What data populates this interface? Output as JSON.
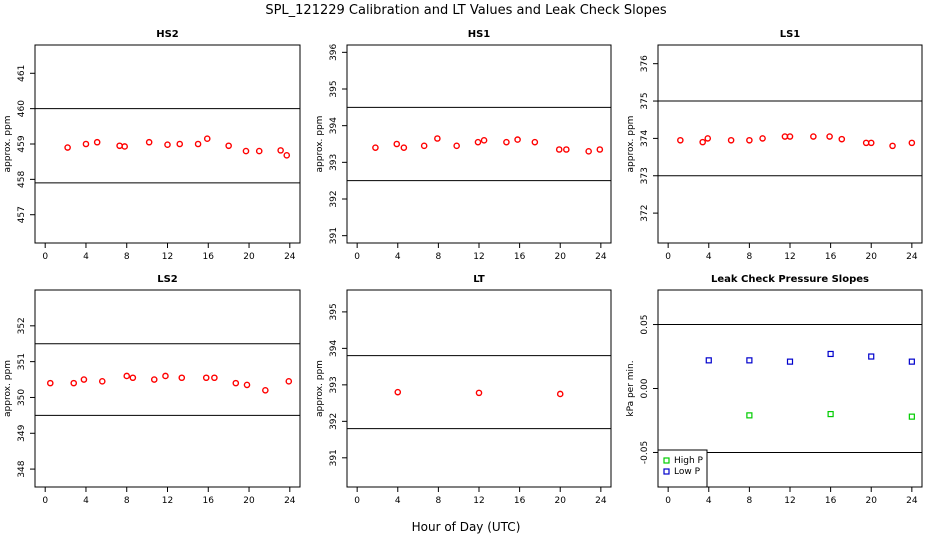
{
  "title": "SPL_121229  Calibration and LT Values and Leak Check Slopes",
  "xlabel": "Hour of Day (UTC)",
  "colors": {
    "calibration": "#ff0000",
    "high_p": "#00cc00",
    "low_p": "#0000cc",
    "frame": "#000000"
  },
  "chart_data": [
    {
      "type": "scatter",
      "title": "HS2",
      "ylabel": "approx. ppm",
      "xticks": [
        0,
        4,
        8,
        12,
        16,
        20,
        24
      ],
      "yticks": [
        457,
        458,
        459,
        460,
        461
      ],
      "ylim": [
        456.2,
        461.8
      ],
      "xlim": [
        -1,
        25
      ],
      "hlines": [
        460.0,
        457.9
      ],
      "series": [
        {
          "marker": "circle",
          "color": "#ff0000",
          "x": [
            2.2,
            4.0,
            5.1,
            7.3,
            7.8,
            10.2,
            12.0,
            13.2,
            15.0,
            15.9,
            18.0,
            19.7,
            21.0,
            23.1,
            23.7
          ],
          "y": [
            458.9,
            459.0,
            459.05,
            458.95,
            458.93,
            459.05,
            458.98,
            459.0,
            459.0,
            459.15,
            458.95,
            458.8,
            458.8,
            458.82,
            458.68
          ]
        }
      ]
    },
    {
      "type": "scatter",
      "title": "HS1",
      "ylabel": "approx. ppm",
      "xticks": [
        0,
        4,
        8,
        12,
        16,
        20,
        24
      ],
      "yticks": [
        391,
        392,
        393,
        394,
        395,
        396
      ],
      "ylim": [
        390.8,
        396.2
      ],
      "xlim": [
        -1,
        25
      ],
      "hlines": [
        394.5,
        392.5
      ],
      "series": [
        {
          "marker": "circle",
          "color": "#ff0000",
          "x": [
            1.8,
            3.9,
            4.6,
            6.6,
            7.9,
            9.8,
            11.9,
            12.5,
            14.7,
            15.8,
            17.5,
            19.9,
            20.6,
            22.8,
            23.9
          ],
          "y": [
            393.4,
            393.5,
            393.4,
            393.45,
            393.65,
            393.45,
            393.55,
            393.6,
            393.55,
            393.62,
            393.55,
            393.35,
            393.35,
            393.3,
            393.35
          ]
        }
      ]
    },
    {
      "type": "scatter",
      "title": "LS1",
      "ylabel": "approx. ppm",
      "xticks": [
        0,
        4,
        8,
        12,
        16,
        20,
        24
      ],
      "yticks": [
        372,
        373,
        374,
        375,
        376
      ],
      "ylim": [
        371.2,
        376.5
      ],
      "xlim": [
        -1,
        25
      ],
      "hlines": [
        375.0,
        373.0
      ],
      "series": [
        {
          "marker": "circle",
          "color": "#ff0000",
          "x": [
            1.2,
            3.4,
            3.9,
            6.2,
            8.0,
            9.3,
            11.5,
            12.0,
            14.3,
            15.9,
            17.1,
            19.5,
            20.0,
            22.1,
            24.0
          ],
          "y": [
            373.95,
            373.9,
            374.0,
            373.95,
            373.95,
            374.0,
            374.05,
            374.05,
            374.05,
            374.05,
            373.98,
            373.88,
            373.88,
            373.8,
            373.88
          ]
        }
      ]
    },
    {
      "type": "scatter",
      "title": "LS2",
      "ylabel": "approx. ppm",
      "xticks": [
        0,
        4,
        8,
        12,
        16,
        20,
        24
      ],
      "yticks": [
        348,
        349,
        350,
        351,
        352
      ],
      "ylim": [
        347.5,
        353.0
      ],
      "xlim": [
        -1,
        25
      ],
      "hlines": [
        351.5,
        349.5
      ],
      "series": [
        {
          "marker": "circle",
          "color": "#ff0000",
          "x": [
            0.5,
            2.8,
            3.8,
            5.6,
            8.0,
            8.6,
            10.7,
            11.8,
            13.4,
            15.8,
            16.6,
            18.7,
            19.8,
            21.6,
            23.9
          ],
          "y": [
            350.4,
            350.4,
            350.5,
            350.45,
            350.6,
            350.55,
            350.5,
            350.6,
            350.55,
            350.55,
            350.55,
            350.4,
            350.35,
            350.2,
            350.45
          ]
        }
      ]
    },
    {
      "type": "scatter",
      "title": "LT",
      "ylabel": "approx. ppm",
      "xticks": [
        0,
        4,
        8,
        12,
        16,
        20,
        24
      ],
      "yticks": [
        391,
        392,
        393,
        394,
        395
      ],
      "ylim": [
        390.2,
        395.6
      ],
      "xlim": [
        -1,
        25
      ],
      "hlines": [
        393.8,
        391.8
      ],
      "series": [
        {
          "marker": "circle",
          "color": "#ff0000",
          "x": [
            4.0,
            12.0,
            20.0
          ],
          "y": [
            392.8,
            392.78,
            392.75
          ]
        }
      ]
    },
    {
      "type": "scatter",
      "title": "Leak Check Pressure Slopes",
      "ylabel": "kPa per min.",
      "xticks": [
        0,
        4,
        8,
        12,
        16,
        20,
        24
      ],
      "yticks": [
        -0.05,
        0.0,
        0.05
      ],
      "ytick_labels": [
        "-0.05",
        "0.00",
        "0.05"
      ],
      "ylim": [
        -0.077,
        0.077
      ],
      "xlim": [
        -1,
        25
      ],
      "hlines": [
        0.05,
        -0.05
      ],
      "legend": "bottom-left",
      "series": [
        {
          "name": "High P",
          "marker": "square",
          "color": "#00cc00",
          "x": [
            8,
            16,
            24
          ],
          "y": [
            -0.021,
            -0.02,
            -0.022
          ]
        },
        {
          "name": "Low P",
          "marker": "square",
          "color": "#0000cc",
          "x": [
            4,
            8,
            12,
            16,
            20,
            24
          ],
          "y": [
            0.022,
            0.022,
            0.021,
            0.027,
            0.025,
            0.021
          ]
        }
      ]
    }
  ]
}
